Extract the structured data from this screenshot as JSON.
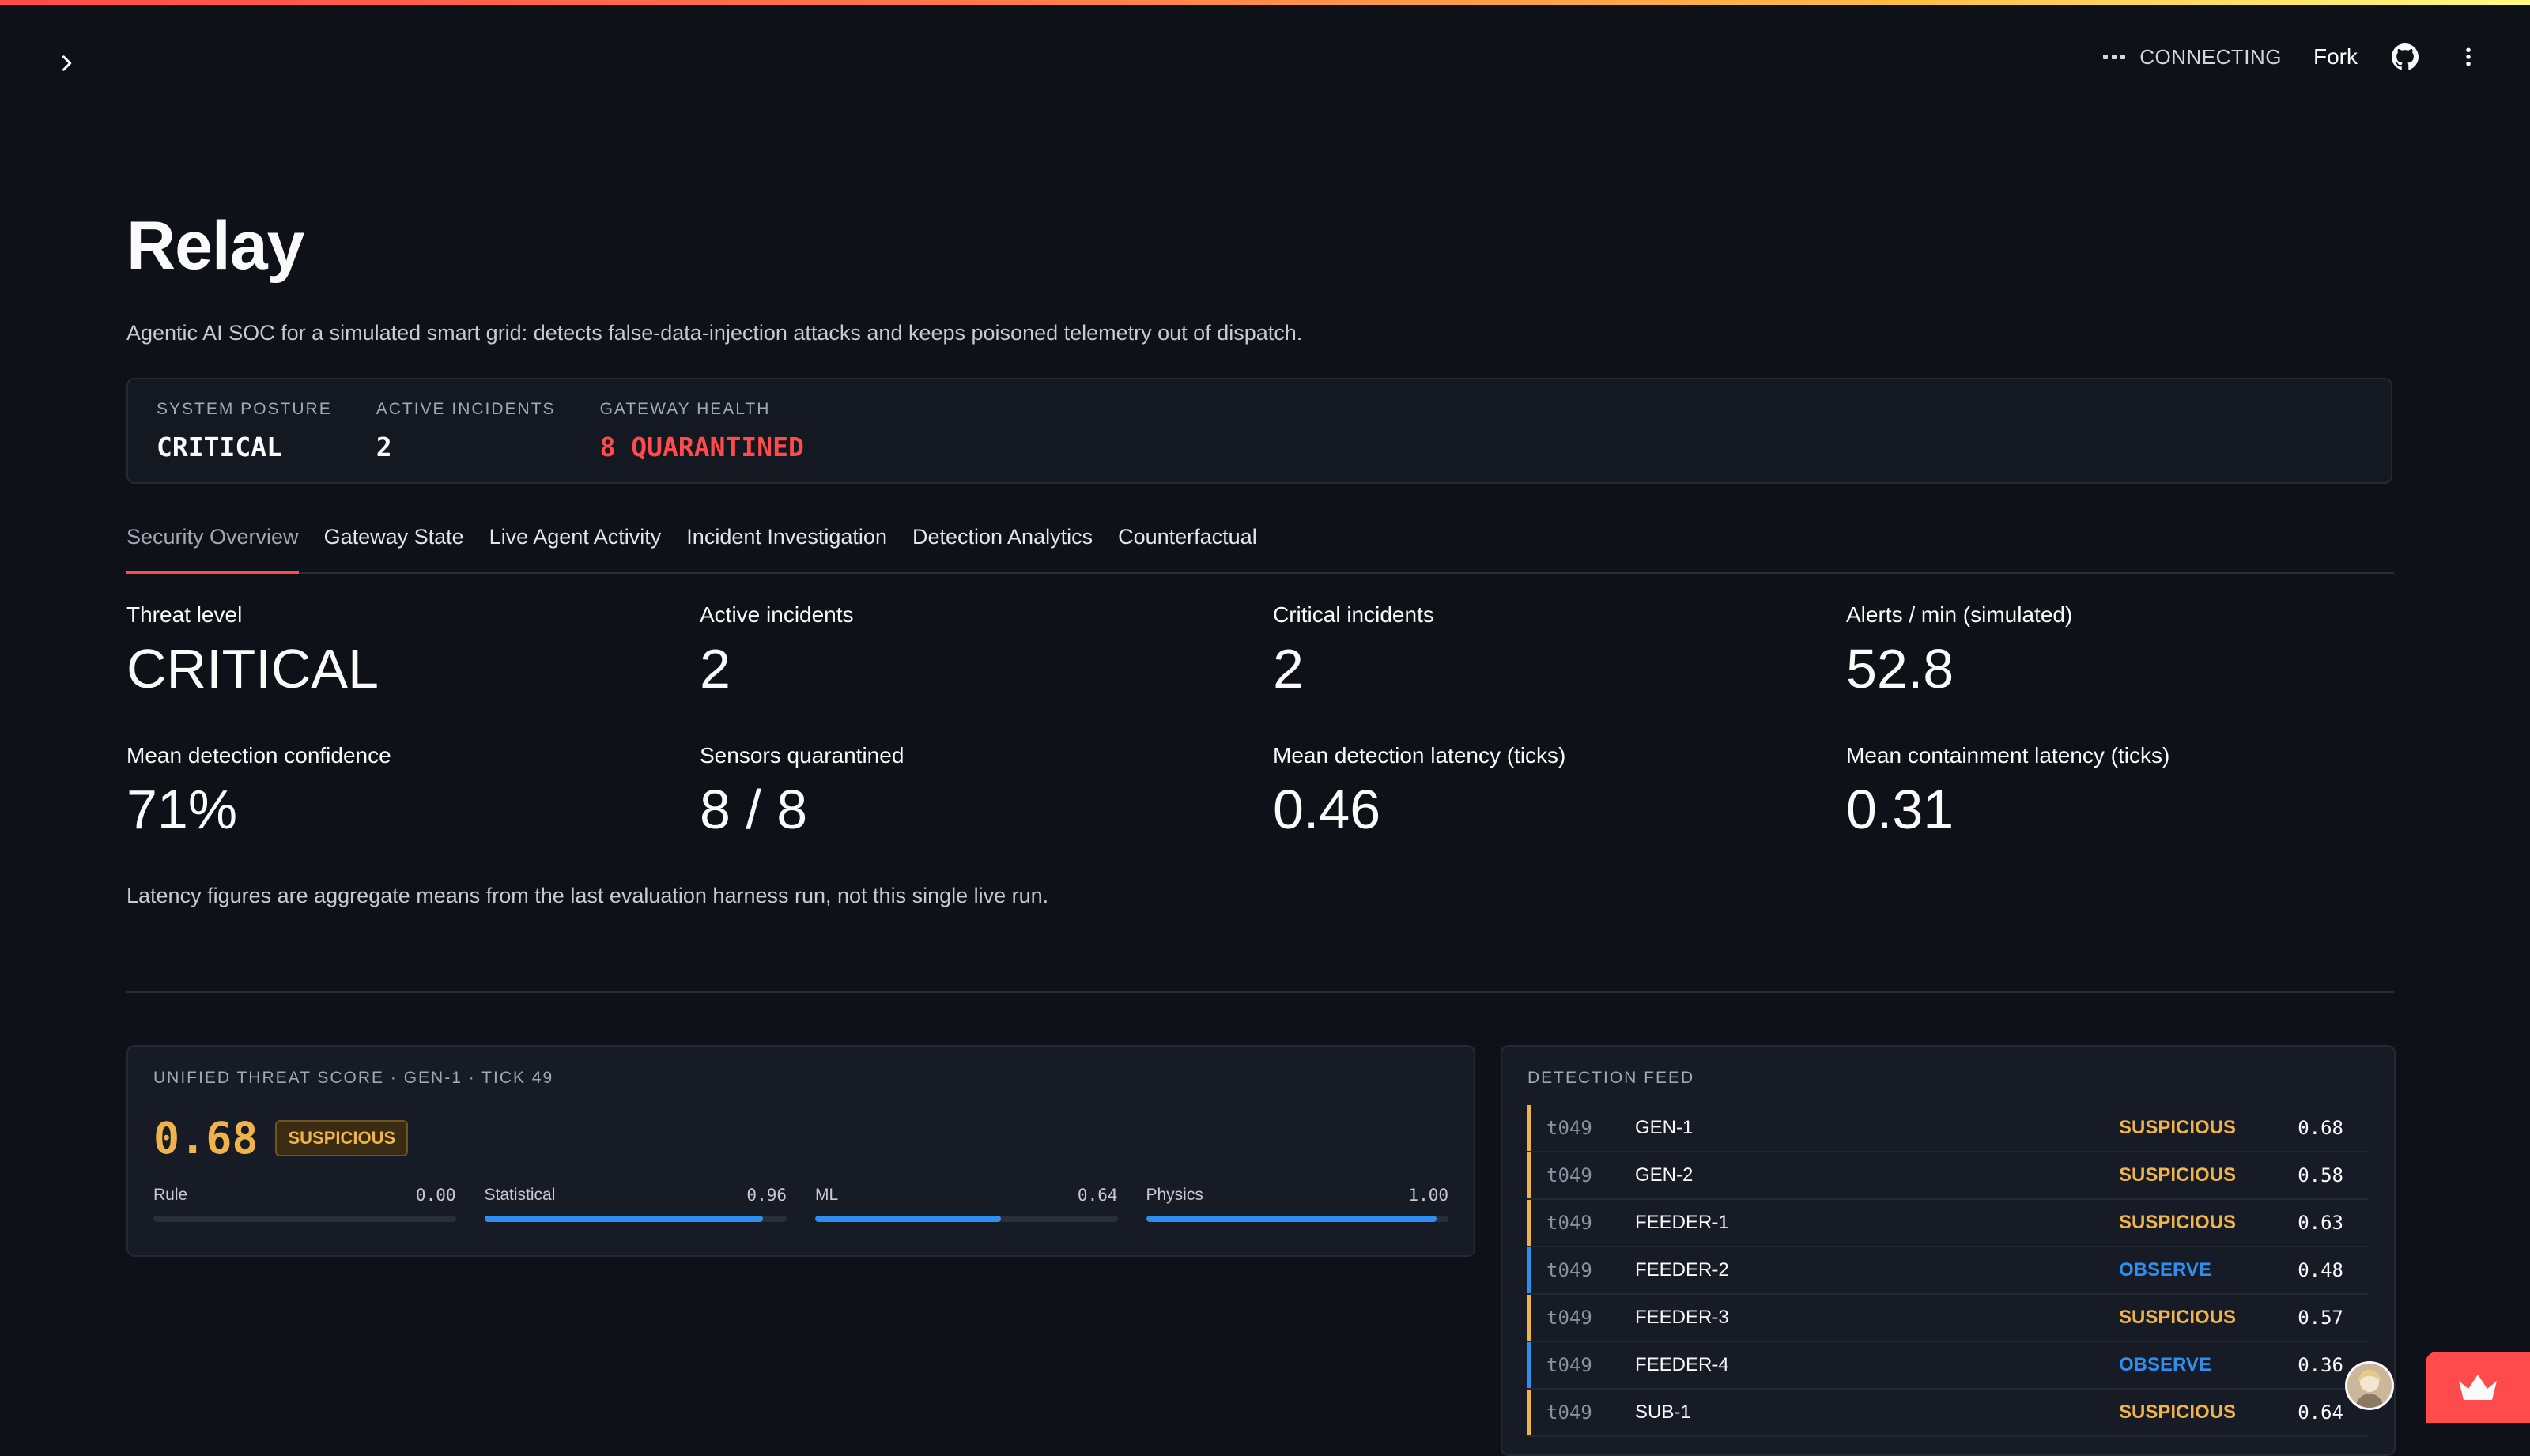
{
  "app": {
    "connection_status": "CONNECTING",
    "fork_label": "Fork",
    "accent_color": "#ff4b4b"
  },
  "header": {
    "title": "Relay",
    "subtitle": "Agentic AI SOC for a simulated smart grid: detects false-data-injection attacks and keeps poisoned telemetry out of dispatch."
  },
  "posture": {
    "items": [
      {
        "label": "SYSTEM POSTURE",
        "value": "CRITICAL"
      },
      {
        "label": "ACTIVE INCIDENTS",
        "value": "2"
      },
      {
        "label": "GATEWAY HEALTH",
        "value": "8 QUARANTINED"
      }
    ]
  },
  "tabs": [
    {
      "label": "Security Overview",
      "active": true
    },
    {
      "label": "Gateway State"
    },
    {
      "label": "Live Agent Activity"
    },
    {
      "label": "Incident Investigation"
    },
    {
      "label": "Detection Analytics"
    },
    {
      "label": "Counterfactual"
    }
  ],
  "metrics": [
    {
      "label": "Threat level",
      "value": "CRITICAL"
    },
    {
      "label": "Active incidents",
      "value": "2"
    },
    {
      "label": "Critical incidents",
      "value": "2"
    },
    {
      "label": "Alerts / min (simulated)",
      "value": "52.8"
    },
    {
      "label": "Mean detection confidence",
      "value": "71%"
    },
    {
      "label": "Sensors quarantined",
      "value": "8 / 8"
    },
    {
      "label": "Mean detection latency (ticks)",
      "value": "0.46"
    },
    {
      "label": "Mean containment latency (ticks)",
      "value": "0.31"
    }
  ],
  "note": "Latency figures are aggregate means from the last evaluation harness run, not this single live run.",
  "threat_score": {
    "title": "UNIFIED THREAT SCORE · GEN-1 · TICK 49",
    "value": "0.68",
    "verdict": "SUSPICIOUS",
    "components": [
      {
        "label": "Rule",
        "value": "0.00",
        "level": 0.0
      },
      {
        "label": "Statistical",
        "value": "0.96",
        "level": 0.96
      },
      {
        "label": "ML",
        "value": "0.64",
        "level": 0.64
      },
      {
        "label": "Physics",
        "value": "1.00",
        "level": 1.0
      }
    ]
  },
  "detection_feed": {
    "title": "DETECTION FEED",
    "rows": [
      {
        "tick": "t049",
        "asset": "GEN-1",
        "verdict": "SUSPICIOUS",
        "score": "0.68"
      },
      {
        "tick": "t049",
        "asset": "GEN-2",
        "verdict": "SUSPICIOUS",
        "score": "0.58"
      },
      {
        "tick": "t049",
        "asset": "FEEDER-1",
        "verdict": "SUSPICIOUS",
        "score": "0.63"
      },
      {
        "tick": "t049",
        "asset": "FEEDER-2",
        "verdict": "OBSERVE",
        "score": "0.48"
      },
      {
        "tick": "t049",
        "asset": "FEEDER-3",
        "verdict": "SUSPICIOUS",
        "score": "0.57"
      },
      {
        "tick": "t049",
        "asset": "FEEDER-4",
        "verdict": "OBSERVE",
        "score": "0.36"
      },
      {
        "tick": "t049",
        "asset": "SUB-1",
        "verdict": "SUSPICIOUS",
        "score": "0.64"
      }
    ]
  },
  "colors": {
    "suspicious": "#f0b34a",
    "observe": "#2f8ff0",
    "critical": "#ff4b4b"
  }
}
